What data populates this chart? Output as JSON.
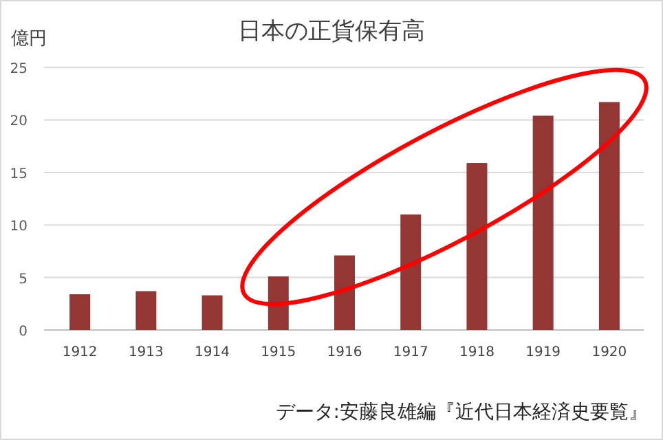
{
  "chart_data": {
    "type": "bar",
    "title": "日本の正貨保有高",
    "ylabel": "億円",
    "categories": [
      "1912",
      "1913",
      "1914",
      "1915",
      "1916",
      "1917",
      "1918",
      "1919",
      "1920"
    ],
    "values": [
      3.4,
      3.7,
      3.3,
      5.1,
      7.1,
      11.0,
      15.9,
      20.4,
      21.7
    ],
    "color": "#943634",
    "ylim": [
      0,
      25
    ],
    "yticks": [
      0,
      5,
      10,
      15,
      20,
      25
    ],
    "grid": "y",
    "annotations": [
      "データ:安藤良雄編『近代日本経済史要覧』"
    ]
  }
}
